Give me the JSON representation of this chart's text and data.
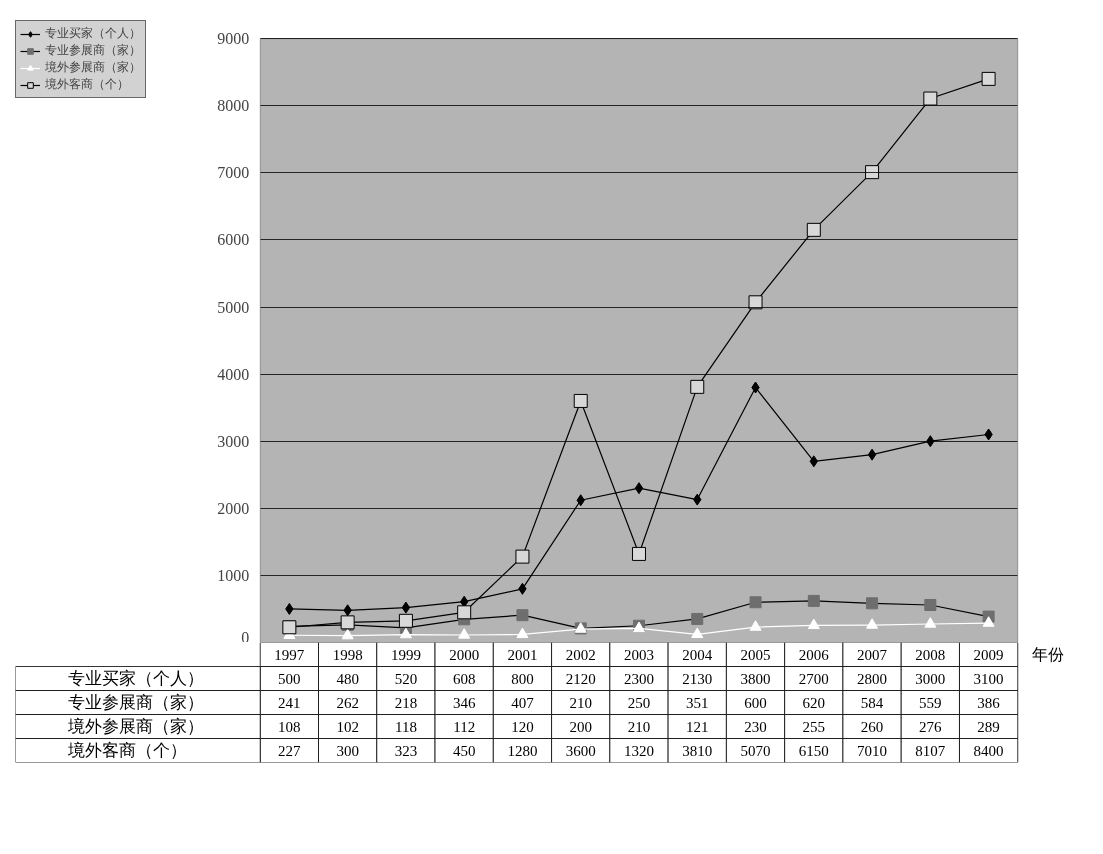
{
  "chart_data": {
    "type": "line",
    "xlabel": "年份",
    "categories": [
      "1997",
      "1998",
      "1999",
      "2000",
      "2001",
      "2002",
      "2003",
      "2004",
      "2005",
      "2006",
      "2007",
      "2008",
      "2009"
    ],
    "series": [
      {
        "name": "专业买家（个人）",
        "color": "#000000",
        "marker": "diamond",
        "values": [
          500,
          480,
          520,
          608,
          800,
          2120,
          2300,
          2130,
          3800,
          2700,
          2800,
          3000,
          3100
        ]
      },
      {
        "name": "专业参展商（家）",
        "color": "#6e6e6e",
        "marker": "square",
        "values": [
          241,
          262,
          218,
          346,
          407,
          210,
          250,
          351,
          600,
          620,
          584,
          559,
          386
        ]
      },
      {
        "name": "境外参展商（家）",
        "color": "#ffffff",
        "marker": "triangle",
        "values": [
          108,
          102,
          118,
          112,
          120,
          200,
          210,
          121,
          230,
          255,
          260,
          276,
          289
        ]
      },
      {
        "name": "境外客商（个）",
        "color": "#000000",
        "marker": "square",
        "values": [
          227,
          300,
          323,
          450,
          1280,
          3600,
          1320,
          3810,
          5070,
          6150,
          7010,
          8107,
          8400
        ]
      }
    ],
    "ylim": [
      0,
      9000
    ],
    "yticks": [
      0,
      1000,
      2000,
      3000,
      4000,
      5000,
      6000,
      7000,
      8000,
      9000
    ],
    "grid": "y",
    "legend": "top left",
    "data_labels": true
  }
}
